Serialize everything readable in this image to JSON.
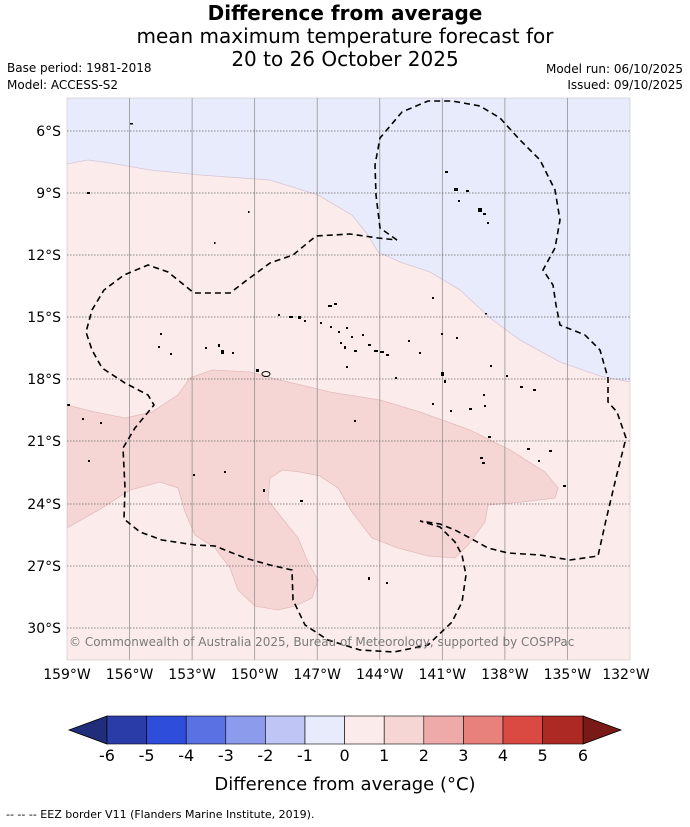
{
  "title": {
    "line1": "Difference from average",
    "line2": "mean maximum temperature forecast for",
    "line3": "20 to 26 October 2025"
  },
  "meta": {
    "base_period": "Base period: 1981-2018",
    "model": "Model: ACCESS-S2",
    "model_run": "Model run: 06/10/2025",
    "issued": "Issued: 09/10/2025"
  },
  "map": {
    "region": "Southwest Pacific (French Polynesia EEZ)",
    "lon_range": [
      -159,
      -132
    ],
    "lat_range": [
      -31.5,
      -4.5
    ],
    "lat_ticks": [
      "6°S",
      "9°S",
      "12°S",
      "15°S",
      "18°S",
      "21°S",
      "24°S",
      "27°S",
      "30°S"
    ],
    "lon_ticks": [
      "159°W",
      "156°W",
      "153°W",
      "150°W",
      "147°W",
      "144°W",
      "141°W",
      "138°W",
      "135°W",
      "132°W"
    ],
    "copyright": "© Commonwealth of Australia 2025, Bureau of Meteorology, supported by COSPPac",
    "fields": [
      {
        "name": "-1 to 0 °C",
        "color": "#e8ebfb"
      },
      {
        "name": "0 to 1 °C",
        "color": "#fbeceb"
      },
      {
        "name": "1 to 2 °C",
        "color": "#f5d6d5"
      }
    ]
  },
  "colorbar": {
    "labels": [
      "-6",
      "-5",
      "-4",
      "-3",
      "-2",
      "-1",
      "0",
      "1",
      "2",
      "3",
      "4",
      "5",
      "6"
    ],
    "colors": [
      "#2a3ca8",
      "#2e4ddb",
      "#5a71e3",
      "#8c9bec",
      "#bfc6f5",
      "#e8ebfb",
      "#fbeceb",
      "#f5d6d5",
      "#eeaaa8",
      "#e8807b",
      "#db4a42",
      "#ad2a24"
    ],
    "under_color": "#1f2d7a",
    "over_color": "#7a1a16",
    "title": "Difference from average (°C)"
  },
  "footnote": "--  --  -- EEZ border V11 (Flanders Marine Institute, 2019)."
}
